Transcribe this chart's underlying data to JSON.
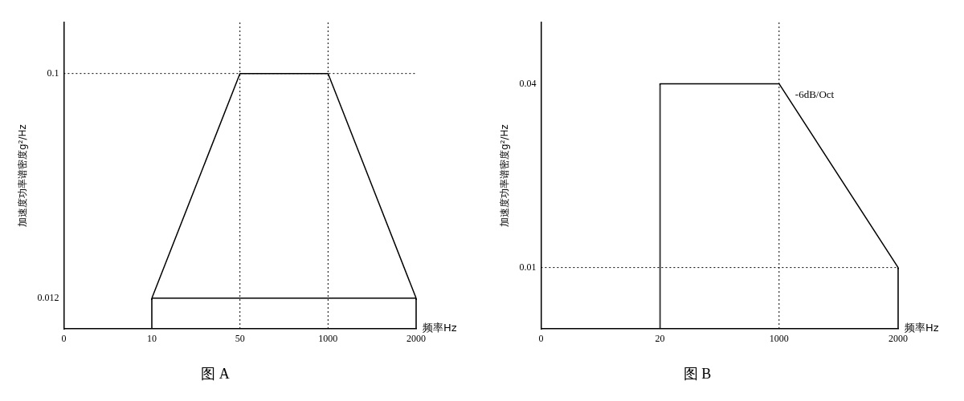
{
  "chart_data": [
    {
      "type": "line",
      "title": "图 A",
      "xlabel": "频率Hz",
      "ylabel": "加速度功率谱密度g²/Hz",
      "categories": [
        "0",
        "10",
        "50",
        "1000",
        "2000"
      ],
      "series": [
        {
          "color": "#000000",
          "values": [
            null,
            0.012,
            0.1,
            0.1,
            0.012
          ]
        },
        {
          "color": "#000000",
          "values": [
            null,
            0.012,
            0.012,
            0.012,
            0.012
          ]
        },
        {
          "type": "bar",
          "color": "#000000",
          "values": [
            null,
            0.012,
            null,
            null,
            0.012
          ]
        }
      ],
      "ylim": [
        0,
        0.12
      ],
      "yticks": [
        0.012,
        0.1
      ],
      "grid": false,
      "legend": false,
      "marker": "none",
      "line_style": "solid",
      "ref_lines": [
        {
          "axis": "y",
          "value": 0.1,
          "line_style": "dotted",
          "color": "#000000"
        },
        {
          "axis": "x",
          "value": "50",
          "line_style": "dotted",
          "color": "#000000"
        },
        {
          "axis": "x",
          "value": "1000",
          "line_style": "dotted",
          "color": "#000000"
        }
      ]
    },
    {
      "type": "line",
      "title": "图 B",
      "xlabel": "频率Hz",
      "ylabel": "加速度功率谱密度g²/Hz",
      "categories": [
        "0",
        "20",
        "1000",
        "2000"
      ],
      "series": [
        {
          "color": "#000000",
          "values": [
            null,
            0.04,
            0.04,
            0.01
          ]
        },
        {
          "type": "bar",
          "color": "#000000",
          "values": [
            null,
            0.04,
            null,
            0.01
          ]
        }
      ],
      "ylim": [
        0,
        0.05
      ],
      "yticks": [
        0.01,
        0.04
      ],
      "grid": false,
      "legend": false,
      "marker": "none",
      "line_style": "solid",
      "ref_lines": [
        {
          "axis": "y",
          "value": 0.01,
          "line_style": "dotted",
          "color": "#000000"
        },
        {
          "axis": "x",
          "value": "1000",
          "line_style": "dotted",
          "color": "#000000"
        }
      ],
      "annotations": [
        {
          "text": "-6dB/Oct",
          "x": "1000",
          "y": 0.04
        }
      ]
    }
  ]
}
